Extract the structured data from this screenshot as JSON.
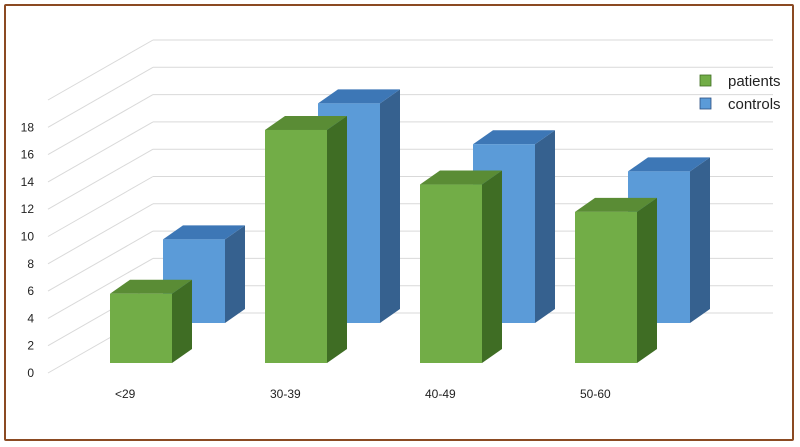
{
  "chart_data": {
    "type": "bar",
    "categories": [
      "<29",
      "30-39",
      "40-49",
      "50-60"
    ],
    "series": [
      {
        "name": "patients",
        "values": [
          5,
          17,
          13,
          11
        ]
      },
      {
        "name": "controls",
        "values": [
          6,
          16,
          13,
          11
        ]
      }
    ],
    "y_ticks": [
      "0",
      "2",
      "4",
      "6",
      "8",
      "10",
      "12",
      "14",
      "16",
      "18"
    ],
    "ylim": [
      0,
      18
    ],
    "grid": true,
    "legend": "top-right",
    "title": "",
    "xlabel": "",
    "ylabel": "",
    "colors": {
      "patients_front": "#72ad47",
      "patients_top": "#5a8c35",
      "patients_side": "#3f6d24",
      "controls_front": "#5b9bd8",
      "controls_top": "#3d77b6",
      "controls_side": "#36618f",
      "grid": "#d9d9d9",
      "border": "#8b4a22"
    }
  }
}
